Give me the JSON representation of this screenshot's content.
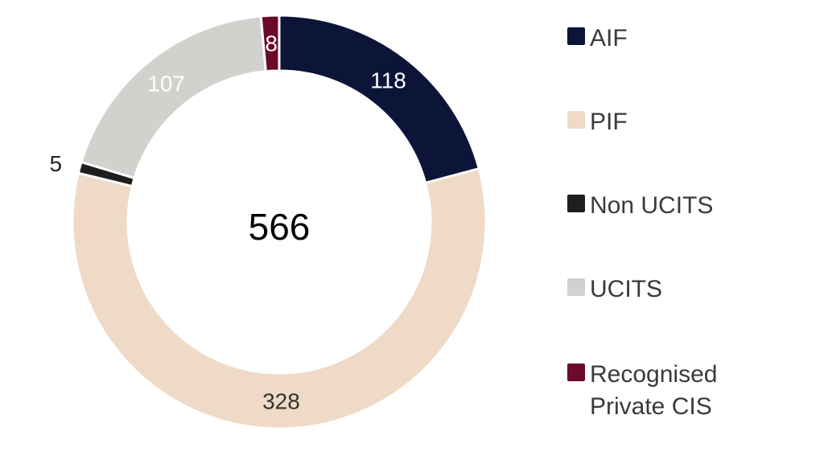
{
  "chart_data": {
    "type": "donut",
    "center_label": "566",
    "categories": [
      "AIF",
      "PIF",
      "Non UCITS",
      "UCITS",
      "Recognised Private CIS"
    ],
    "values": [
      118,
      328,
      5,
      107,
      8
    ],
    "value_labels": [
      "118",
      "328",
      "5",
      "107",
      "8"
    ],
    "colors": [
      "#0c1537",
      "#eedac6",
      "#1e1e1e",
      "#d1d1ce",
      "#6b0a2c"
    ],
    "legend_placement": "right"
  },
  "legend": [
    {
      "label": "AIF",
      "color": "#0c1537"
    },
    {
      "label": "PIF",
      "color": "#eedac6"
    },
    {
      "label": "Non UCITS",
      "color": "#1e1e1e"
    },
    {
      "label": "UCITS",
      "color": "#d1d1ce"
    },
    {
      "label": "Recognised\nPrivate CIS",
      "color": "#6b0a2c"
    }
  ]
}
